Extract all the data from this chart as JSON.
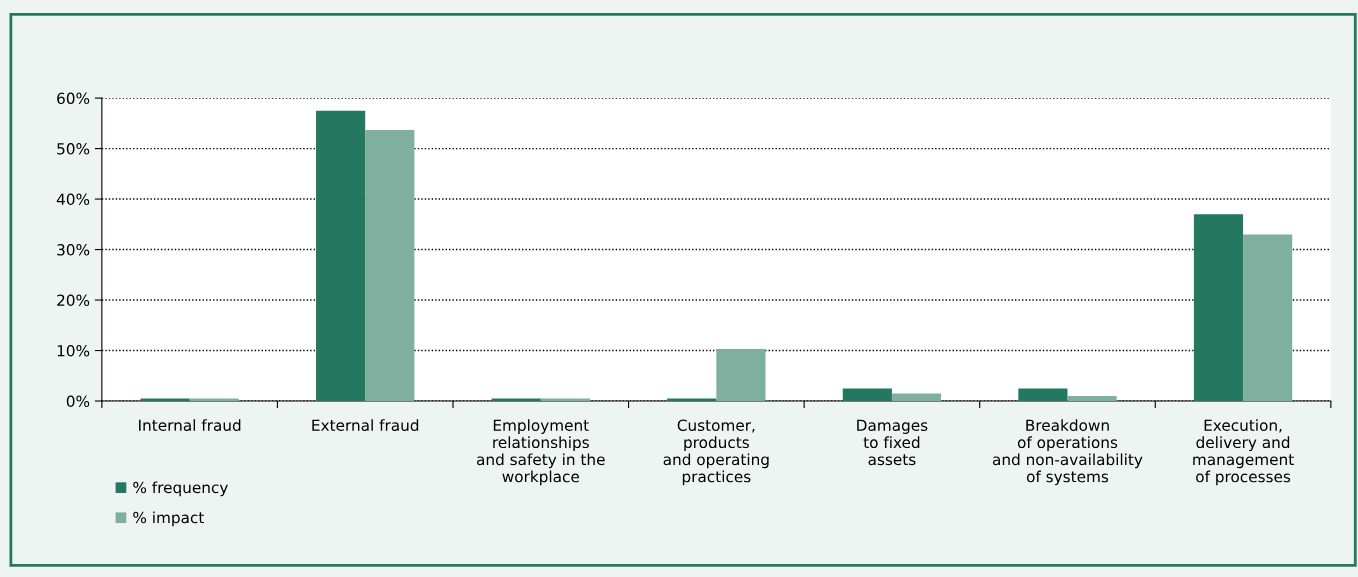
{
  "chart_data": {
    "type": "bar",
    "categories": [
      "Internal fraud",
      "External fraud",
      "Employment\nrelationships\nand safety in the\nworkplace",
      "Customer,\nproducts\nand operating\npractices",
      "Damages\nto fixed\nassets",
      "Breakdown\nof operations\nand non-availability\nof systems",
      "Execution,\ndelivery and\nmanagement\nof processes"
    ],
    "series": [
      {
        "name": "% frequency",
        "color": "#24785f",
        "values": [
          0.5,
          57.5,
          0.5,
          0.5,
          2.5,
          2.5,
          37
        ]
      },
      {
        "name": "% impact",
        "color": "#7eaf9f",
        "values": [
          0.5,
          53.7,
          0.5,
          10.3,
          1.5,
          1.0,
          33
        ]
      }
    ],
    "ylim": [
      0,
      60
    ],
    "yticks": [
      {
        "value": 0,
        "label": "0%"
      },
      {
        "value": 10,
        "label": "10%"
      },
      {
        "value": 20,
        "label": "20%"
      },
      {
        "value": 30,
        "label": "30%"
      },
      {
        "value": 40,
        "label": "40%"
      },
      {
        "value": 50,
        "label": "50%"
      },
      {
        "value": 60,
        "label": "60%"
      }
    ],
    "grid": "y",
    "legend": "bottom left"
  }
}
